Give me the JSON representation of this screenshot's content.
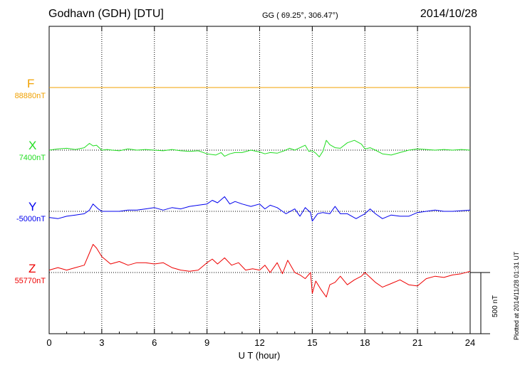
{
  "header": {
    "title": "Godhavn (GDH)  [DTU]",
    "coords": "GG ( 69.25°, 306.47°)",
    "date": "2014/10/28"
  },
  "plotted_note": "Plotted at 2014/11/28 01:31  UT",
  "chart_data": {
    "type": "line",
    "title": "Godhavn (GDH)  [DTU]",
    "xlabel": "U T (hour)",
    "xlim": [
      0,
      24
    ],
    "x_ticks": [
      "0",
      "3",
      "6",
      "9",
      "12",
      "15",
      "18",
      "21",
      "24"
    ],
    "grid": "dotted vertical at every 3 h, dotted baselines",
    "scale_bar": {
      "label": "500 nT",
      "value_nT": 500
    },
    "series": [
      {
        "name": "F",
        "baseline_label": "88880nT",
        "baseline_nT": 88880,
        "color": "#f0a000",
        "hours": [
          0,
          6,
          12,
          18,
          24
        ],
        "values_nT": [
          0,
          0,
          0,
          0,
          0
        ]
      },
      {
        "name": "X",
        "baseline_label": "7400nT",
        "baseline_nT": 7400,
        "color": "#22dd22",
        "hours": [
          0,
          0.5,
          1,
          1.5,
          2,
          2.3,
          2.5,
          2.7,
          3,
          3.3,
          3.6,
          4,
          4.5,
          5,
          5.5,
          6,
          6.5,
          7,
          7.5,
          8,
          8.5,
          9,
          9.5,
          9.8,
          10,
          10.3,
          10.6,
          11,
          11.5,
          12,
          12.3,
          12.6,
          13,
          13.4,
          13.7,
          14,
          14.3,
          14.6,
          14.8,
          15,
          15.2,
          15.4,
          15.6,
          15.8,
          16,
          16.3,
          16.6,
          17,
          17.4,
          17.8,
          18,
          18.3,
          18.6,
          19,
          19.5,
          20,
          20.5,
          21,
          21.5,
          22,
          22.5,
          23,
          23.5,
          24
        ],
        "values_nT": [
          0,
          10,
          15,
          5,
          20,
          55,
          35,
          40,
          0,
          5,
          0,
          -5,
          10,
          0,
          5,
          0,
          -5,
          5,
          -5,
          -10,
          -5,
          -30,
          -40,
          -20,
          -50,
          -30,
          -20,
          -20,
          0,
          -15,
          -30,
          -20,
          -25,
          -5,
          15,
          0,
          20,
          40,
          -10,
          -5,
          -25,
          -55,
          -10,
          80,
          45,
          20,
          15,
          60,
          80,
          50,
          10,
          20,
          0,
          -30,
          -40,
          -20,
          0,
          10,
          5,
          0,
          5,
          0,
          5,
          0
        ]
      },
      {
        "name": "Y",
        "baseline_label": "-5000nT",
        "baseline_nT": -5000,
        "color": "#0000ee",
        "hours": [
          0,
          0.5,
          1,
          1.5,
          2,
          2.3,
          2.5,
          2.8,
          3,
          3.5,
          4,
          4.5,
          5,
          5.5,
          6,
          6.5,
          7,
          7.5,
          8,
          8.5,
          9,
          9.3,
          9.6,
          10,
          10.3,
          10.6,
          11,
          11.5,
          12,
          12.3,
          12.6,
          13,
          13.5,
          14,
          14.3,
          14.6,
          14.9,
          15,
          15.3,
          15.6,
          16,
          16.3,
          16.6,
          17,
          17.5,
          18,
          18.3,
          18.6,
          19,
          19.5,
          20,
          20.5,
          21,
          22,
          22.5,
          23,
          24
        ],
        "values_nT": [
          -50,
          -60,
          -40,
          -30,
          -20,
          10,
          60,
          20,
          0,
          0,
          0,
          10,
          10,
          20,
          30,
          10,
          30,
          20,
          40,
          50,
          60,
          90,
          70,
          120,
          60,
          80,
          60,
          40,
          60,
          20,
          50,
          30,
          -20,
          20,
          -40,
          30,
          -10,
          -80,
          -20,
          -10,
          -20,
          40,
          -20,
          -20,
          -60,
          -20,
          20,
          -20,
          -60,
          -30,
          -40,
          -40,
          -10,
          10,
          0,
          0,
          10
        ]
      },
      {
        "name": "Z",
        "baseline_label": "55770nT",
        "baseline_nT": 55770,
        "color": "#ee0000",
        "hours": [
          0,
          0.5,
          1,
          1.5,
          2,
          2.3,
          2.5,
          2.7,
          3,
          3.5,
          4,
          4.5,
          5,
          5.5,
          6,
          6.5,
          7,
          7.5,
          8,
          8.5,
          9,
          9.3,
          9.6,
          10,
          10.4,
          10.8,
          11.2,
          11.6,
          12,
          12.3,
          12.6,
          13,
          13.3,
          13.6,
          14,
          14.3,
          14.6,
          14.9,
          15,
          15.2,
          15.5,
          15.8,
          16,
          16.3,
          16.6,
          17,
          17.4,
          17.8,
          18,
          18.3,
          18.6,
          19,
          19.5,
          20,
          20.5,
          21,
          21.5,
          22,
          22.5,
          23,
          23.5,
          24
        ],
        "values_nT": [
          20,
          40,
          20,
          40,
          60,
          160,
          230,
          200,
          130,
          70,
          90,
          60,
          80,
          80,
          70,
          80,
          40,
          20,
          10,
          20,
          80,
          110,
          70,
          120,
          60,
          80,
          20,
          30,
          20,
          60,
          0,
          80,
          -10,
          100,
          0,
          -20,
          -50,
          0,
          -170,
          -70,
          -140,
          -200,
          -100,
          -80,
          -30,
          -100,
          -60,
          -30,
          0,
          -40,
          -80,
          -120,
          -90,
          -60,
          -100,
          -110,
          -50,
          -30,
          -40,
          -20,
          -10,
          10
        ]
      }
    ]
  }
}
